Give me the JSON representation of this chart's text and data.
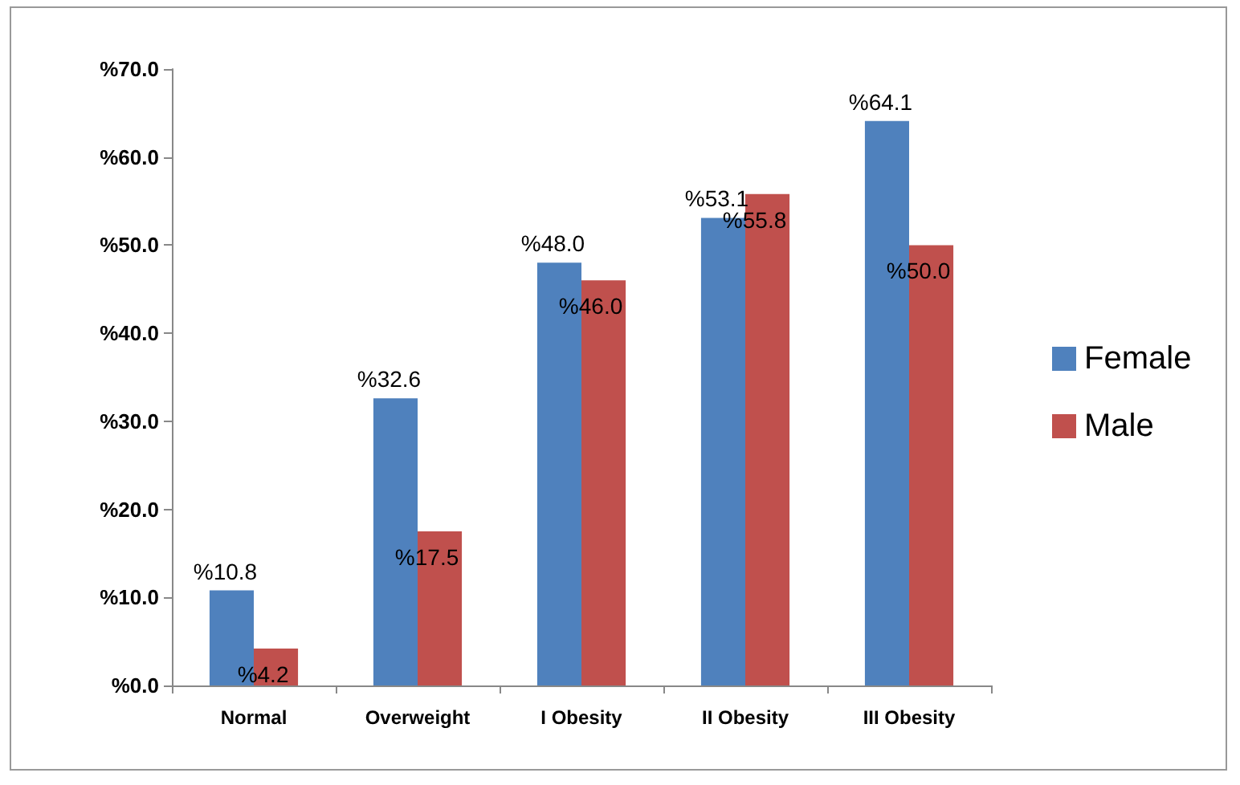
{
  "chart_data": {
    "type": "bar",
    "categories": [
      "Normal",
      "Overweight",
      "I Obesity",
      "II Obesity",
      "III Obesity"
    ],
    "series": [
      {
        "name": "Female",
        "color": "#4f81bd",
        "values": [
          10.8,
          32.6,
          48.0,
          53.1,
          64.1
        ],
        "value_labels": [
          "%10.8",
          "%32.6",
          "%48.0",
          "%53.1",
          "%64.1"
        ]
      },
      {
        "name": "Male",
        "color": "#c0504d",
        "values": [
          4.2,
          17.5,
          46.0,
          55.8,
          50.0
        ],
        "value_labels": [
          "%4.2",
          "%17.5",
          "%46.0",
          "%55.8",
          "%50.0"
        ]
      }
    ],
    "ylim": [
      0,
      70
    ],
    "yticks": [
      {
        "value": 0,
        "label": "%0.0"
      },
      {
        "value": 10,
        "label": "%10.0"
      },
      {
        "value": 20,
        "label": "%20.0"
      },
      {
        "value": 30,
        "label": "%30.0"
      },
      {
        "value": 40,
        "label": "%40.0"
      },
      {
        "value": 50,
        "label": "%50.0"
      },
      {
        "value": 60,
        "label": "%60.0"
      },
      {
        "value": 70,
        "label": "%70.0"
      }
    ],
    "grid": false,
    "legend": "right"
  }
}
